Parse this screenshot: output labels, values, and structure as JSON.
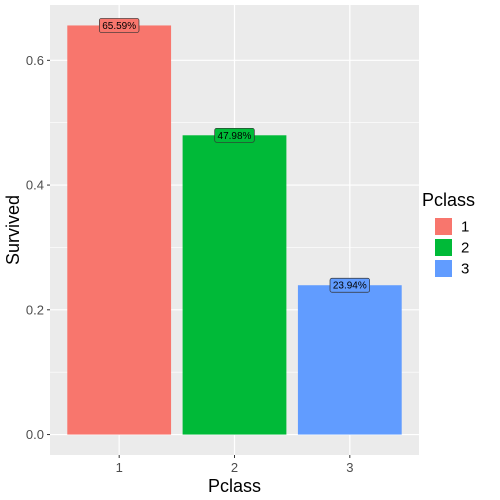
{
  "chart_data": {
    "type": "bar",
    "categories": [
      "1",
      "2",
      "3"
    ],
    "values": [
      0.6559,
      0.4798,
      0.2394
    ],
    "data_labels": [
      "65.59%",
      "47.98%",
      "23.94%"
    ],
    "colors": [
      "#F8766D",
      "#00BA38",
      "#619CFF"
    ],
    "xlabel": "Pclass",
    "ylabel": "Survived",
    "ylim": [
      -0.0328,
      0.6887
    ],
    "yticks": [
      0.0,
      0.2,
      0.4,
      0.6
    ],
    "ytick_labels": [
      "0.0",
      "0.2",
      "0.4",
      "0.6"
    ],
    "grid": true,
    "panel_background": "#EBEBEB",
    "legend": {
      "title": "Pclass",
      "position": "right",
      "labels": [
        "1",
        "2",
        "3"
      ]
    }
  }
}
